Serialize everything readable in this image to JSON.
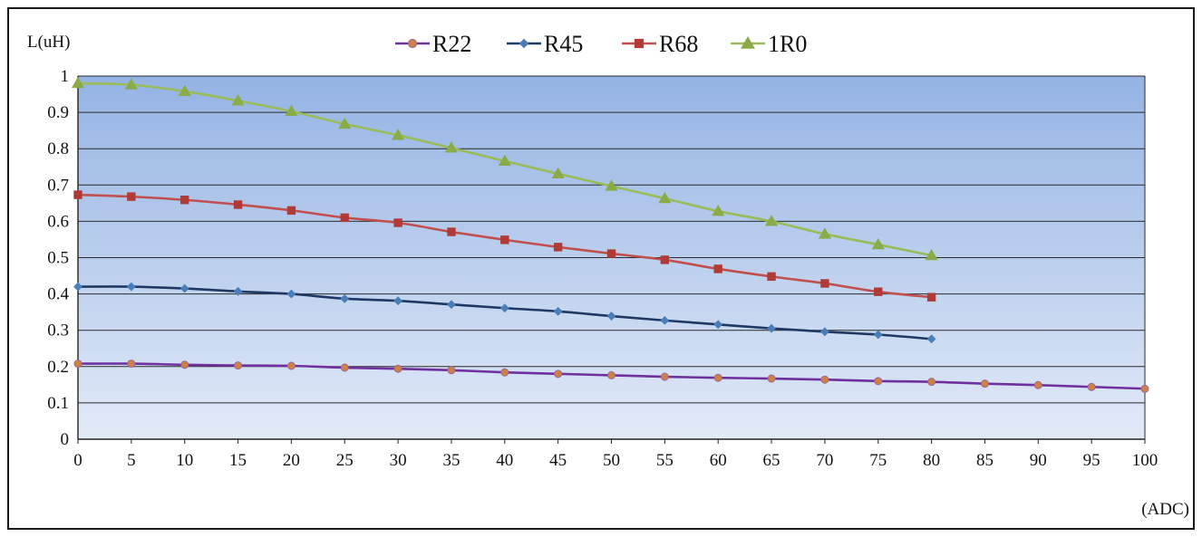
{
  "chart_data": {
    "type": "line",
    "ylabel": "L(uH)",
    "xlabel": "(ADC)",
    "xlim": [
      0,
      100
    ],
    "ylim": [
      0,
      1
    ],
    "x_ticks": [
      0,
      5,
      10,
      15,
      20,
      25,
      30,
      35,
      40,
      45,
      50,
      55,
      60,
      65,
      70,
      75,
      80,
      85,
      90,
      95,
      100
    ],
    "y_ticks": [
      0,
      0.1,
      0.2,
      0.3,
      0.4,
      0.5,
      0.6,
      0.7,
      0.8,
      0.9,
      1
    ],
    "y_tick_labels": [
      "0",
      "0.1",
      "0.2",
      "0.3",
      "0.4",
      "0.5",
      "0.6",
      "0.7",
      "0.8",
      "0.9",
      "1"
    ],
    "grid": "horizontal",
    "legend_position": "top",
    "series": [
      {
        "name": "R22",
        "color": "#7030a0",
        "marker": "circle",
        "marker_color": "#d08040",
        "x": [
          0,
          5,
          10,
          15,
          20,
          25,
          30,
          35,
          40,
          45,
          50,
          55,
          60,
          65,
          70,
          75,
          80,
          85,
          90,
          95,
          100
        ],
        "values": [
          0.208,
          0.208,
          0.205,
          0.203,
          0.202,
          0.197,
          0.194,
          0.19,
          0.184,
          0.18,
          0.176,
          0.172,
          0.169,
          0.167,
          0.164,
          0.16,
          0.158,
          0.153,
          0.149,
          0.144,
          0.139
        ]
      },
      {
        "name": "R45",
        "color": "#1f3864",
        "marker": "diamond",
        "marker_color": "#4a7ebb",
        "x": [
          0,
          5,
          10,
          15,
          20,
          25,
          30,
          35,
          40,
          45,
          50,
          55,
          60,
          65,
          70,
          75,
          80
        ],
        "values": [
          0.42,
          0.42,
          0.415,
          0.407,
          0.4,
          0.387,
          0.381,
          0.371,
          0.361,
          0.352,
          0.339,
          0.327,
          0.316,
          0.305,
          0.296,
          0.288,
          0.276
        ]
      },
      {
        "name": "R68",
        "color": "#c0504d",
        "marker": "square",
        "marker_color": "#b03a36",
        "x": [
          0,
          5,
          10,
          15,
          20,
          25,
          30,
          35,
          40,
          45,
          50,
          55,
          60,
          65,
          70,
          75,
          80
        ],
        "values": [
          0.673,
          0.668,
          0.659,
          0.646,
          0.63,
          0.61,
          0.596,
          0.571,
          0.549,
          0.529,
          0.511,
          0.494,
          0.469,
          0.448,
          0.429,
          0.406,
          0.391
        ]
      },
      {
        "name": "1R0",
        "color": "#9bbb59",
        "marker": "triangle",
        "marker_color": "#8aab48",
        "x": [
          0,
          5,
          10,
          15,
          20,
          25,
          30,
          35,
          40,
          45,
          50,
          55,
          60,
          65,
          70,
          75,
          80
        ],
        "values": [
          0.98,
          0.976,
          0.958,
          0.932,
          0.903,
          0.868,
          0.837,
          0.802,
          0.766,
          0.731,
          0.697,
          0.663,
          0.628,
          0.6,
          0.565,
          0.536,
          0.506
        ]
      }
    ]
  }
}
